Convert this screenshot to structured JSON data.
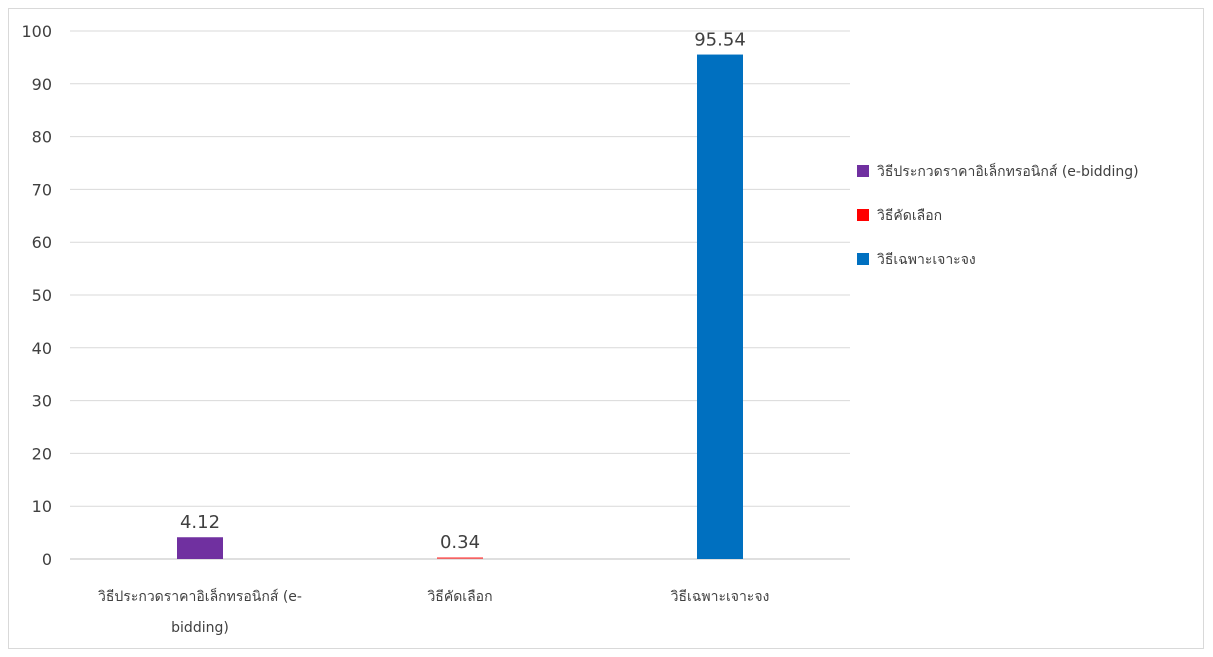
{
  "chart_data": {
    "type": "bar",
    "title": "",
    "xlabel": "",
    "ylabel": "",
    "ylim": [
      0,
      100
    ],
    "yticks": [
      0,
      10,
      20,
      30,
      40,
      50,
      60,
      70,
      80,
      90,
      100
    ],
    "grid": true,
    "legend_position": "right",
    "categories": [
      [
        "วิธีประกวดราคาอิเล็กทรอนิกส์ (e-",
        "bidding)"
      ],
      [
        "วิธีคัดเลือก"
      ],
      [
        "วิธีเฉพาะเจาะจง"
      ]
    ],
    "series": [
      {
        "name": "วิธีประกวดราคาอิเล็กทรอนิกส์ (e-bidding)",
        "category_index": 0,
        "value": 4.12,
        "label": "4.12",
        "color": "#7030a0"
      },
      {
        "name": "วิธีคัดเลือก",
        "category_index": 1,
        "value": 0.34,
        "label": "0.34",
        "color": "#ff0000"
      },
      {
        "name": "วิธีเฉพาะเจาะจง",
        "category_index": 2,
        "value": 95.54,
        "label": "95.54",
        "color": "#0070c0"
      }
    ]
  }
}
